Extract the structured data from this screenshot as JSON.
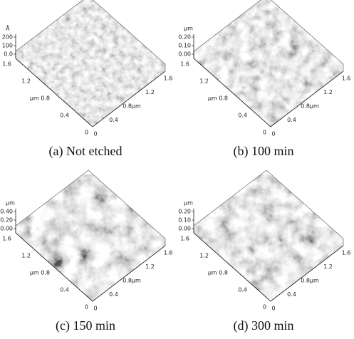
{
  "panels": [
    {
      "caption": "(a) Not etched",
      "z_unit": "Å",
      "z_ticks": [
        "200",
        "100",
        "0.0"
      ],
      "left_ticks": [
        "1.6",
        "1.2",
        "μm 0.8",
        "0.4",
        "0"
      ],
      "right_ticks": [
        "1.6",
        "1.2",
        "0.8μm",
        "0.4",
        "0"
      ]
    },
    {
      "caption": "(b) 100 min",
      "z_unit": "μm",
      "z_ticks": [
        "0.20",
        "0.10",
        "0.00"
      ],
      "left_ticks": [
        "1.6",
        "1.2",
        "μm 0.8",
        "0.4",
        "0"
      ],
      "right_ticks": [
        "1.6",
        "1.2",
        "0.8μm",
        "0.4",
        "0"
      ]
    },
    {
      "caption": "(c) 150 min",
      "z_unit": "μm",
      "z_ticks": [
        "0.40",
        "0.20",
        "0.00"
      ],
      "left_ticks": [
        "1.6",
        "1.2",
        "μm 0.8",
        "0.4",
        "0"
      ],
      "right_ticks": [
        "1.6",
        "1.2",
        "0.8μm",
        "0.4",
        "0"
      ]
    },
    {
      "caption": "(d) 300 min",
      "z_unit": "μm",
      "z_ticks": [
        "0.20",
        "0.10",
        "0.00"
      ],
      "left_ticks": [
        "1.6",
        "1.2",
        "μm 0.8",
        "0.4",
        "0"
      ],
      "right_ticks": [
        "1.6",
        "1.2",
        "0.8μm",
        "0.4",
        "0"
      ]
    }
  ]
}
